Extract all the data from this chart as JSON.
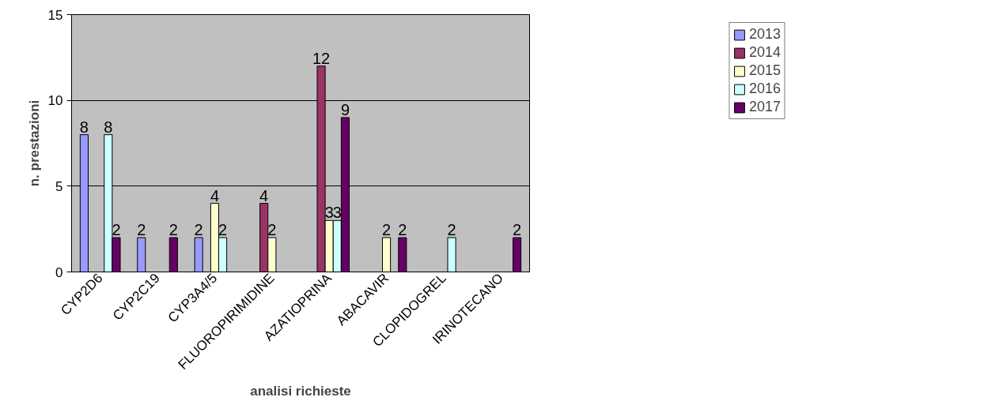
{
  "chart_data": {
    "type": "bar",
    "xlabel": "analisi richieste",
    "ylabel": "n. prestazioni",
    "categories": [
      "CYP2D6",
      "CYP2C19",
      "CYP3A4/5",
      "FLUOROPIRIMIDINE",
      "AZATIOPRINA",
      "ABACAVIR",
      "CLOPIDOGREL",
      "IRINOTECANO"
    ],
    "series": [
      {
        "name": "2013",
        "color": "#9999ff",
        "values": [
          8,
          2,
          2,
          null,
          null,
          null,
          null,
          null
        ]
      },
      {
        "name": "2014",
        "color": "#993366",
        "values": [
          null,
          null,
          null,
          4,
          12,
          null,
          null,
          null
        ]
      },
      {
        "name": "2015",
        "color": "#ffffcc",
        "values": [
          null,
          null,
          4,
          2,
          3,
          2,
          null,
          null
        ]
      },
      {
        "name": "2016",
        "color": "#ccffff",
        "values": [
          8,
          null,
          2,
          null,
          3,
          null,
          2,
          null
        ]
      },
      {
        "name": "2017",
        "color": "#660066",
        "values": [
          2,
          2,
          null,
          null,
          9,
          2,
          null,
          2
        ]
      }
    ],
    "ylim": [
      0,
      15
    ],
    "yticks": [
      0,
      5,
      10,
      15
    ],
    "grid": "y",
    "legend": "right",
    "data_labels": true
  }
}
